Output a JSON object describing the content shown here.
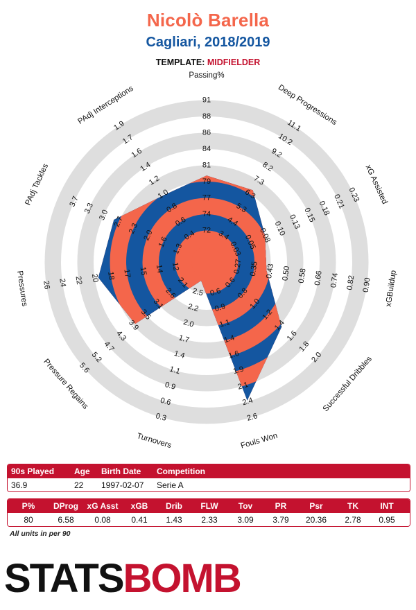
{
  "header": {
    "player": "Nicolò Barella",
    "team_season": "Cagliari, 2018/2019",
    "template_label": "TEMPLATE:",
    "template_value": "MIDFIELDER"
  },
  "chart_data": {
    "type": "radar",
    "colors": {
      "band_a": "#f4664b",
      "band_b": "#1456a0",
      "ring": "#dedede",
      "text": "#111111"
    },
    "axes": [
      {
        "name": "Passing%",
        "ticks": [
          "72",
          "74",
          "77",
          "79",
          "81",
          "84",
          "86",
          "88",
          "91"
        ],
        "value": 80
      },
      {
        "name": "Deep Progressions",
        "ticks": [
          "3.4",
          "4.4",
          "5.3",
          "6.3",
          "7.3",
          "8.2",
          "9.2",
          "10.2",
          "11.1"
        ],
        "value": 6.58
      },
      {
        "name": "xG Assisted",
        "ticks": [
          "0.03",
          "0.05",
          "0.08",
          "0.10",
          "0.13",
          "0.15",
          "0.18",
          "0.21",
          "0.23"
        ],
        "value": 0.08
      },
      {
        "name": "xGBuildup",
        "ticks": [
          "0.27",
          "0.35",
          "0.43",
          "0.50",
          "0.58",
          "0.66",
          "0.74",
          "0.82",
          "0.90"
        ],
        "value": 0.41
      },
      {
        "name": "Successful Dribbles",
        "ticks": [
          "0.6",
          "0.8",
          "1.0",
          "1.2",
          "1.4",
          "1.6",
          "1.8",
          "2.0"
        ],
        "value": 1.43
      },
      {
        "name": "Fouls Won",
        "ticks": [
          "0.6",
          "0.9",
          "1.1",
          "1.4",
          "1.6",
          "1.9",
          "2.1",
          "2.4",
          "2.6"
        ],
        "value": 2.33
      },
      {
        "name": "Turnovers",
        "ticks": [
          "2.5",
          "2.2",
          "2.0",
          "1.7",
          "1.4",
          "1.1",
          "0.9",
          "0.6",
          "0.3"
        ],
        "value": 3.09
      },
      {
        "name": "Pressure Regains",
        "ticks": [
          "2.1",
          "2.6",
          "3.1",
          "3.5",
          "3.9",
          "4.3",
          "4.7",
          "5.2",
          "5.6"
        ],
        "value": 3.79
      },
      {
        "name": "Pressures",
        "ticks": [
          "12",
          "14",
          "15",
          "17",
          "18",
          "20",
          "22",
          "24",
          "26"
        ],
        "value": 20.36
      },
      {
        "name": "PAdj Tackles",
        "ticks": [
          "1.3",
          "1.6",
          "2.0",
          "2.3",
          "2.7",
          "3.0",
          "3.3",
          "3.7"
        ],
        "value": 2.78
      },
      {
        "name": "PAdj Interceptions",
        "ticks": [
          "0.4",
          "0.6",
          "0.8",
          "1.0",
          "1.2",
          "1.4",
          "1.6",
          "1.7",
          "1.9"
        ],
        "value": 0.95
      }
    ]
  },
  "stats_table_1": {
    "headers": [
      "90s Played",
      "Age",
      "Birth Date",
      "Competition"
    ],
    "values": [
      "36.9",
      "22",
      "1997-02-07",
      "Serie A"
    ]
  },
  "stats_table_2": {
    "headers": [
      "P%",
      "DProg",
      "xG Asst",
      "xGB",
      "Drib",
      "FLW",
      "Tov",
      "PR",
      "Psr",
      "TK",
      "INT"
    ],
    "values": [
      "80",
      "6.58",
      "0.08",
      "0.41",
      "1.43",
      "2.33",
      "3.09",
      "3.79",
      "20.36",
      "2.78",
      "0.95"
    ]
  },
  "footnote": "All units in per 90",
  "logo": {
    "part1": "STATS",
    "part2": "BOMB"
  }
}
